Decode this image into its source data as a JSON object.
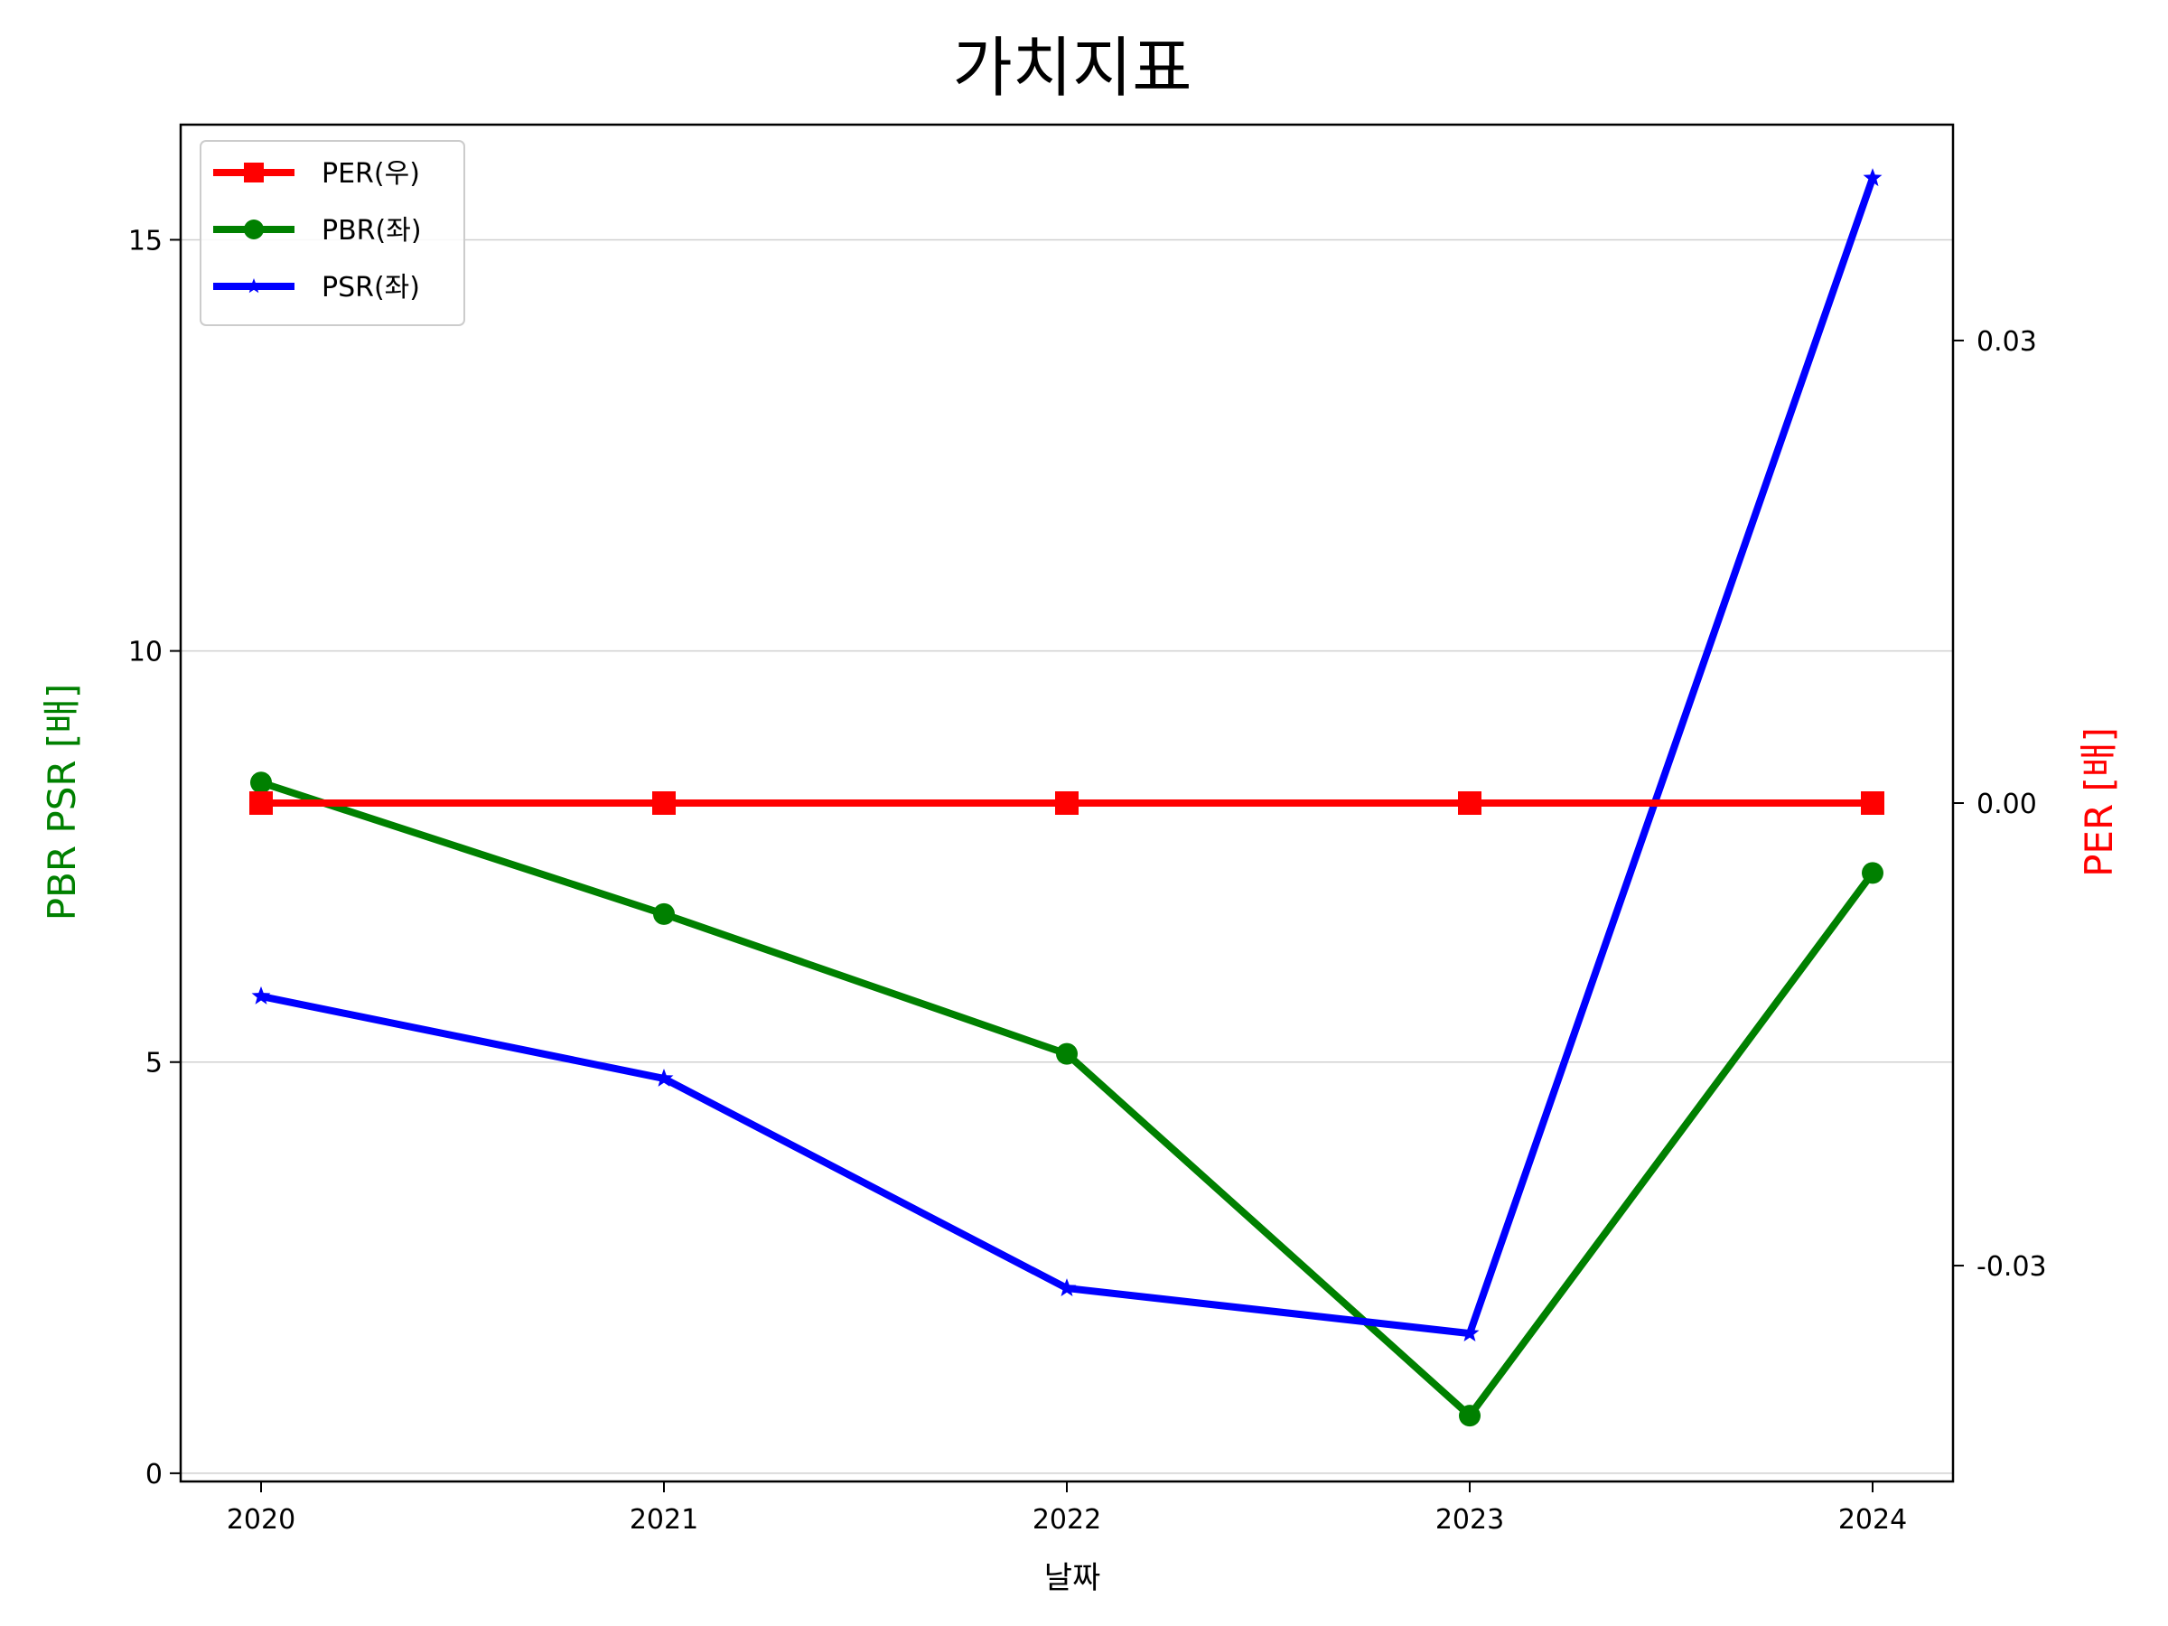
{
  "chart_data": {
    "type": "line",
    "title": "가치지표",
    "xlabel": "날짜",
    "ylabel_left": "PBR PSR [배]",
    "ylabel_right": "PER [배]",
    "categories": [
      "2020",
      "2021",
      "2022",
      "2023",
      "2024"
    ],
    "ylim_left": [
      -0.1,
      16.4
    ],
    "yticks_left": [
      0,
      5,
      10,
      15
    ],
    "ylim_right": [
      -0.044,
      0.044
    ],
    "yticks_right": [
      "-0.03",
      "0.00",
      "0.03"
    ],
    "yticks_right_values": [
      -0.03,
      0.0,
      0.03
    ],
    "grid": "horizontal",
    "legend_position": "upper-left",
    "series": [
      {
        "name": "PER(우)",
        "axis": "right",
        "color": "#ff0000",
        "marker": "square",
        "values": [
          0,
          0,
          0,
          0,
          0
        ]
      },
      {
        "name": "PBR(좌)",
        "axis": "left",
        "color": "#008000",
        "marker": "circle",
        "values": [
          8.4,
          6.8,
          5.1,
          0.7,
          7.3
        ]
      },
      {
        "name": "PSR(좌)",
        "axis": "left",
        "color": "#0000ff",
        "marker": "star",
        "values": [
          5.8,
          4.8,
          2.25,
          1.7,
          15.75
        ]
      }
    ],
    "ylabel_left_color": "#008000",
    "ylabel_right_color": "#ff0000"
  }
}
